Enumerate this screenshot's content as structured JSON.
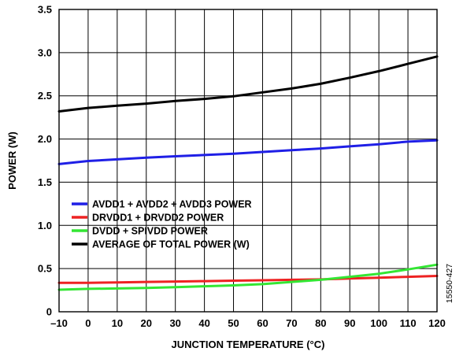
{
  "chart_data": {
    "type": "line",
    "title": "",
    "xlabel": "JUNCTION TEMPERATURE (°C)",
    "ylabel": "POWER (W)",
    "xlim": [
      -10,
      120
    ],
    "ylim": [
      0,
      3.5
    ],
    "x_ticks": [
      "–10",
      "0",
      "10",
      "20",
      "30",
      "40",
      "50",
      "60",
      "70",
      "80",
      "90",
      "100",
      "110",
      "120"
    ],
    "y_ticks": [
      "0",
      "0.5",
      "1.0",
      "1.5",
      "2.0",
      "2.5",
      "3.0",
      "3.5"
    ],
    "grid": true,
    "legend_position": "center-left",
    "x": [
      -10,
      0,
      10,
      20,
      30,
      40,
      50,
      60,
      70,
      80,
      90,
      100,
      110,
      120
    ],
    "series": [
      {
        "name": "AVDD1 + AVDD2 + AVDD3 POWER",
        "color": "#1f1fe6",
        "values": [
          1.71,
          1.745,
          1.765,
          1.785,
          1.8,
          1.815,
          1.83,
          1.85,
          1.87,
          1.89,
          1.915,
          1.94,
          1.97,
          1.985
        ]
      },
      {
        "name": "DRVDD1 + DRVDD2 POWER",
        "color": "#ee2222",
        "values": [
          0.335,
          0.335,
          0.34,
          0.345,
          0.35,
          0.355,
          0.36,
          0.365,
          0.37,
          0.375,
          0.385,
          0.395,
          0.405,
          0.415
        ]
      },
      {
        "name": "DVDD + SPIVDD POWER",
        "color": "#33e633",
        "values": [
          0.255,
          0.265,
          0.27,
          0.275,
          0.285,
          0.295,
          0.305,
          0.32,
          0.345,
          0.37,
          0.405,
          0.44,
          0.49,
          0.545
        ]
      },
      {
        "name": "AVERAGE OF TOTAL POWER (W)",
        "color": "#000000",
        "values": [
          2.32,
          2.36,
          2.385,
          2.41,
          2.44,
          2.465,
          2.495,
          2.54,
          2.585,
          2.64,
          2.71,
          2.785,
          2.87,
          2.955
        ]
      }
    ]
  },
  "figure_id": "15550-427"
}
